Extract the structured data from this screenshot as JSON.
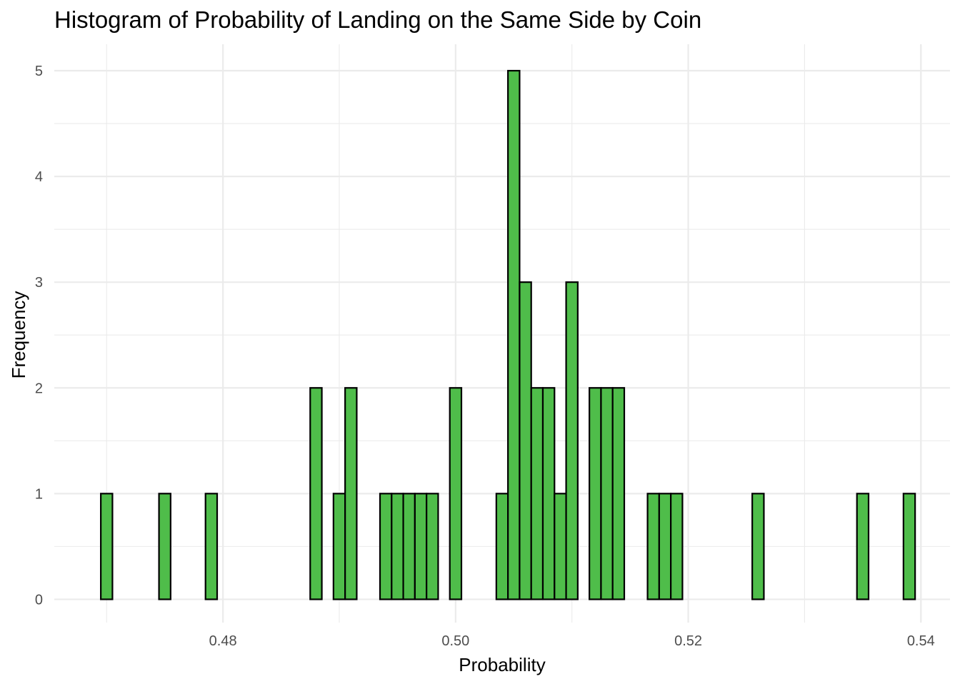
{
  "chart_data": {
    "type": "bar",
    "title": "Histogram of Probability of Landing on the Same Side by Coin",
    "xlabel": "Probability",
    "ylabel": "Frequency",
    "xlim": [
      0.4655,
      0.5425
    ],
    "ylim": [
      -0.22,
      5.25
    ],
    "x_ticks": [
      {
        "value": 0.48,
        "label": "0.48"
      },
      {
        "value": 0.5,
        "label": "0.50"
      },
      {
        "value": 0.52,
        "label": "0.52"
      },
      {
        "value": 0.54,
        "label": "0.54"
      }
    ],
    "x_minor_ticks": [
      0.47,
      0.49,
      0.51,
      0.53
    ],
    "y_ticks": [
      {
        "value": 0,
        "label": "0"
      },
      {
        "value": 1,
        "label": "1"
      },
      {
        "value": 2,
        "label": "2"
      },
      {
        "value": 3,
        "label": "3"
      },
      {
        "value": 4,
        "label": "4"
      },
      {
        "value": 5,
        "label": "5"
      }
    ],
    "y_minor_ticks": [
      0.5,
      1.5,
      2.5,
      3.5,
      4.5
    ],
    "grid": true,
    "bar_fill": "#4fbd4a",
    "bar_stroke": "#000000",
    "grid_color": "#ebebeb",
    "bins": {
      "start": 0.4695,
      "width": 0.001,
      "counts": [
        1,
        0,
        0,
        0,
        0,
        1,
        0,
        0,
        0,
        1,
        0,
        0,
        0,
        0,
        0,
        0,
        0,
        0,
        2,
        0,
        1,
        2,
        0,
        0,
        1,
        1,
        1,
        1,
        1,
        0,
        2,
        0,
        0,
        0,
        1,
        5,
        3,
        2,
        2,
        1,
        3,
        0,
        2,
        2,
        2,
        0,
        0,
        1,
        1,
        1,
        0,
        0,
        0,
        0,
        0,
        0,
        1,
        0,
        0,
        0,
        0,
        0,
        0,
        0,
        0,
        1,
        0,
        0,
        0,
        1
      ]
    }
  }
}
